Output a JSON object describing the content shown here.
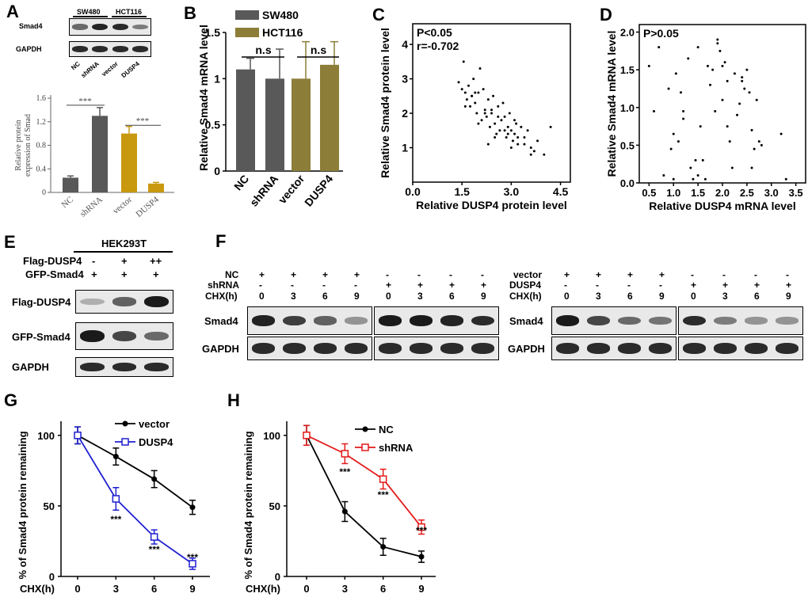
{
  "panels": {
    "a": "A",
    "b": "B",
    "c": "C",
    "d": "D",
    "e": "E",
    "f": "F",
    "g": "G",
    "h": "H"
  },
  "panelA": {
    "blot_headers": [
      "SW480",
      "HCT116"
    ],
    "blot_rows": [
      "Smad4",
      "GAPDH"
    ],
    "lanes": [
      "NC",
      "shRNA",
      "vector",
      "DUSP4"
    ],
    "smad4_intensity": [
      0.55,
      0.95,
      0.9,
      0.45
    ],
    "gapdh_intensity": [
      0.9,
      0.9,
      0.9,
      0.9
    ],
    "sig": [
      "***",
      "***"
    ]
  },
  "panelE": {
    "cell_line": "HEK293T",
    "conditions": [
      {
        "label": "Flag-DUSP4",
        "marks": [
          "-",
          "+",
          "++"
        ]
      },
      {
        "label": "GFP-Smad4",
        "marks": [
          "+",
          "+",
          "+"
        ]
      }
    ],
    "blot_rows": [
      "Flag-DUSP4",
      "GFP-Smad4",
      "GAPDH"
    ],
    "flag_intensity": [
      0.15,
      0.6,
      1.0
    ],
    "gfp_intensity": [
      1.0,
      0.75,
      0.55
    ],
    "gapdh_intensity": [
      0.9,
      0.9,
      0.9
    ]
  },
  "panelF": {
    "left": {
      "rows": [
        {
          "label": "NC",
          "marks": [
            "+",
            "+",
            "+",
            "+",
            "-",
            "-",
            "-",
            "-"
          ]
        },
        {
          "label": "shRNA",
          "marks": [
            "-",
            "-",
            "-",
            "-",
            "+",
            "+",
            "+",
            "+"
          ]
        },
        {
          "label": "CHX(h)",
          "marks": [
            "0",
            "3",
            "6",
            "9",
            "0",
            "3",
            "6",
            "9"
          ]
        }
      ],
      "blot_rows": [
        "Smad4",
        "GAPDH"
      ],
      "smad4_intensity": [
        0.95,
        0.8,
        0.6,
        0.3,
        1.0,
        1.0,
        0.95,
        0.9
      ]
    },
    "right": {
      "rows": [
        {
          "label": "vector",
          "marks": [
            "+",
            "+",
            "+",
            "+",
            "-",
            "-",
            "-",
            "-"
          ]
        },
        {
          "label": "DUSP4",
          "marks": [
            "-",
            "-",
            "-",
            "-",
            "+",
            "+",
            "+",
            "+"
          ]
        },
        {
          "label": "CHX(h)",
          "marks": [
            "0",
            "3",
            "6",
            "9",
            "0",
            "3",
            "6",
            "9"
          ]
        }
      ],
      "blot_rows": [
        "Smad4",
        "GAPDH"
      ],
      "smad4_intensity": [
        1.0,
        0.75,
        0.55,
        0.5,
        0.9,
        0.45,
        0.3,
        0.3
      ]
    }
  },
  "chart_data": [
    {
      "id": "A",
      "type": "bar",
      "categories": [
        "NC",
        "shRNA",
        "vector",
        "DUSP4"
      ],
      "values": [
        0.25,
        1.3,
        1.0,
        0.15
      ],
      "errors": [
        0.03,
        0.14,
        0.12,
        0.02
      ],
      "colors": [
        "#595959",
        "#595959",
        "#c8980f",
        "#c8980f"
      ],
      "ylabel": "Relative protein expression of Smad",
      "ylim": [
        0,
        1.6
      ],
      "yticks": [
        "0",
        "0.4",
        "0.8",
        "1.2",
        "1.6"
      ],
      "significance": [
        "***",
        "***"
      ]
    },
    {
      "id": "B",
      "type": "bar",
      "categories": [
        "NC",
        "shRNA",
        "vector",
        "DUSP4"
      ],
      "series": [
        {
          "name": "SW480",
          "color": "#595959"
        },
        {
          "name": "HCT116",
          "color": "#8c7d38"
        }
      ],
      "values": [
        1.1,
        1.0,
        1.0,
        1.15
      ],
      "errors": [
        0.12,
        0.32,
        0.4,
        0.25
      ],
      "ylabel": "Relative Smad4 mRNA level",
      "ylim": [
        0,
        1.5
      ],
      "yticks": [
        "0",
        "0.5",
        "1",
        "1.5"
      ],
      "significance": [
        "n.s",
        "n.s"
      ]
    },
    {
      "id": "C",
      "type": "scatter",
      "annotations": [
        "P<0.05",
        "r=-0.702"
      ],
      "xlabel": "Relative DUSP4  protein level",
      "ylabel": "Relative Smad4  protein level",
      "xlim": [
        0,
        4.8
      ],
      "ylim": [
        0,
        4.6
      ],
      "xticks": [
        "0.0",
        "1.5",
        "3.0",
        "4.5"
      ],
      "yticks": [
        "1",
        "2",
        "3",
        "4"
      ],
      "x": [
        1.4,
        1.5,
        1.55,
        1.6,
        1.65,
        1.7,
        1.75,
        1.8,
        1.85,
        1.9,
        1.95,
        2.0,
        2.05,
        2.1,
        2.15,
        2.2,
        2.25,
        2.3,
        2.35,
        2.4,
        2.45,
        2.5,
        2.55,
        2.6,
        2.65,
        2.7,
        2.75,
        2.8,
        2.85,
        2.9,
        2.95,
        3.0,
        3.05,
        3.1,
        3.15,
        3.2,
        3.3,
        3.4,
        3.5,
        3.6,
        3.7,
        3.8,
        4.0,
        4.2,
        1.6,
        1.9,
        2.2,
        2.5,
        2.8,
        3.1,
        3.4,
        2.0,
        2.3,
        2.6,
        2.9,
        3.2,
        1.8,
        2.4,
        3.0,
        3.6
      ],
      "y": [
        2.9,
        2.7,
        3.5,
        2.6,
        2.4,
        2.8,
        2.2,
        2.5,
        3.0,
        2.3,
        2.0,
        2.6,
        3.3,
        1.8,
        2.7,
        2.1,
        1.9,
        2.4,
        1.6,
        2.0,
        2.5,
        1.7,
        1.4,
        2.2,
        1.5,
        1.8,
        2.3,
        1.9,
        1.3,
        1.6,
        2.0,
        1.5,
        1.2,
        1.4,
        1.7,
        1.1,
        1.6,
        1.3,
        1.5,
        1.0,
        0.9,
        1.2,
        0.8,
        1.6,
        2.2,
        2.6,
        2.0,
        1.3,
        1.5,
        1.8,
        1.1,
        1.7,
        1.1,
        1.9,
        1.4,
        1.3,
        2.5,
        2.1,
        1.0,
        0.8
      ]
    },
    {
      "id": "D",
      "type": "scatter",
      "annotations": [
        "P>0.05"
      ],
      "xlabel": "Relative DUSP4   mRNA level",
      "ylabel": "Relative Smad4   mRNA level",
      "xlim": [
        0.3,
        3.7
      ],
      "ylim": [
        0,
        2.1
      ],
      "xticks": [
        "0.5",
        "1.0",
        "1.5",
        "2.0",
        "2.5",
        "3.0",
        "3.5"
      ],
      "yticks": [
        "0.0",
        "0.5",
        "1.0",
        "1.5",
        "2.0"
      ],
      "x": [
        0.5,
        0.6,
        0.7,
        0.8,
        0.9,
        0.95,
        1.0,
        1.05,
        1.1,
        1.15,
        1.2,
        1.3,
        1.35,
        1.4,
        1.45,
        1.5,
        1.55,
        1.6,
        1.65,
        1.7,
        1.75,
        1.8,
        1.85,
        1.9,
        1.95,
        2.0,
        2.05,
        2.1,
        2.15,
        2.2,
        2.25,
        2.3,
        2.35,
        2.4,
        2.45,
        2.5,
        2.55,
        2.6,
        2.65,
        2.7,
        2.75,
        2.8,
        3.2,
        3.3,
        1.0,
        1.2,
        1.9,
        2.1,
        2.0,
        2.6,
        1.5,
        2.4
      ],
      "y": [
        1.55,
        0.95,
        1.8,
        0.1,
        1.25,
        0.45,
        0.05,
        1.45,
        0.55,
        1.2,
        0.95,
        1.65,
        0.2,
        0.05,
        0.3,
        1.8,
        0.75,
        0.3,
        0.05,
        1.55,
        1.3,
        1.5,
        0.95,
        1.85,
        1.75,
        1.1,
        1.6,
        0.75,
        0.55,
        0.2,
        1.45,
        0.9,
        1.05,
        1.35,
        1.25,
        1.5,
        1.2,
        0.7,
        0.45,
        1.1,
        0.55,
        0.5,
        0.65,
        0.05,
        0.65,
        0.85,
        1.9,
        1.35,
        1.55,
        0.2,
        0.1,
        1.4
      ]
    },
    {
      "id": "G",
      "type": "line",
      "x": [
        0,
        3,
        6,
        9
      ],
      "xticks": [
        "0",
        "3",
        "6",
        "9"
      ],
      "xlabel": "CHX(h)",
      "ylabel": "% of Smad4 protein remaining",
      "ylim": [
        0,
        110
      ],
      "yticks": [
        "0",
        "50",
        "100"
      ],
      "series": [
        {
          "name": "vector",
          "values": [
            100,
            85,
            69,
            49
          ],
          "errors": [
            6,
            6,
            6,
            5
          ],
          "color": "#000000",
          "marker": "circle"
        },
        {
          "name": "DUSP4",
          "values": [
            100,
            55,
            28,
            9
          ],
          "errors": [
            6,
            8,
            5,
            4
          ],
          "color": "#1f1fd1",
          "marker": "square"
        }
      ],
      "significance": [
        {
          "x": 3,
          "label": "***"
        },
        {
          "x": 6,
          "label": "***"
        },
        {
          "x": 9,
          "label": "***"
        }
      ]
    },
    {
      "id": "H",
      "type": "line",
      "x": [
        0,
        3,
        6,
        9
      ],
      "xticks": [
        "0",
        "3",
        "6",
        "9"
      ],
      "xlabel": "CHX(h)",
      "ylabel": "% of Smad4 protein remaining",
      "ylim": [
        0,
        110
      ],
      "yticks": [
        "0",
        "50",
        "100"
      ],
      "series": [
        {
          "name": "NC",
          "values": [
            100,
            46,
            21,
            14
          ],
          "errors": [
            7,
            7,
            6,
            4
          ],
          "color": "#000000",
          "marker": "circle"
        },
        {
          "name": "shRNA",
          "values": [
            100,
            87,
            69,
            35
          ],
          "errors": [
            7,
            7,
            7,
            5
          ],
          "color": "#e31a1a",
          "marker": "square"
        }
      ],
      "significance": [
        {
          "x": 3,
          "label": "***"
        },
        {
          "x": 6,
          "label": "***"
        },
        {
          "x": 9,
          "label": "***"
        }
      ]
    }
  ]
}
